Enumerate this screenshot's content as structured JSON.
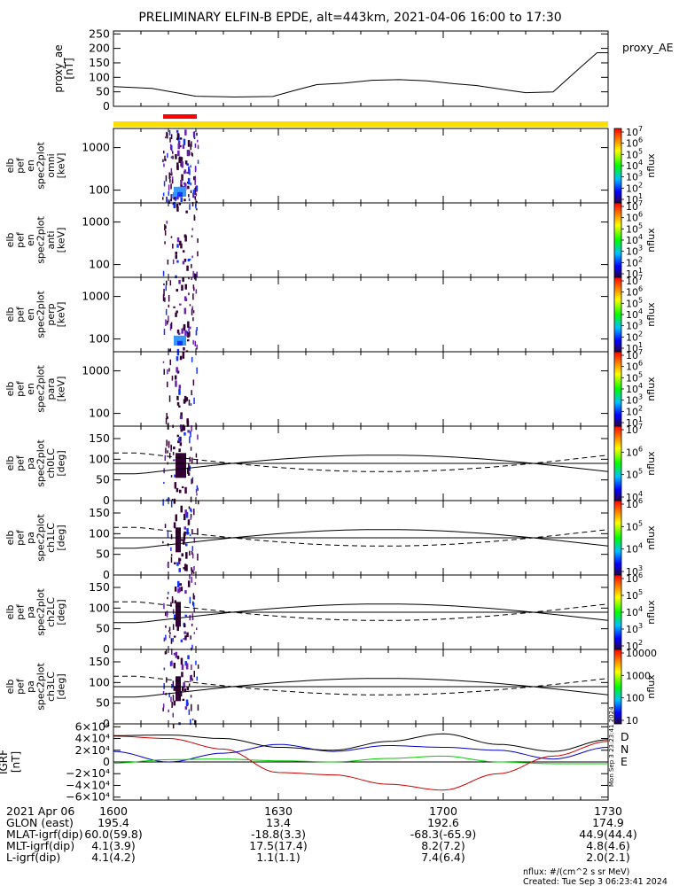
{
  "title": "PRELIMINARY ELFIN-B EPDE, alt=443km, 2021-04-06 16:00 to 17:30",
  "footer": {
    "units": "nflux: #/(cm^2 s sr MeV)",
    "created": "Created: Tue Sep  3 06:23:41 2024"
  },
  "side_stamp": "Mon Sep  3 23:23:41 2024",
  "colors": {
    "sc_bar": "#ffdd00",
    "sci_zone": "#ff0000",
    "grf_d": "#cc0000",
    "grf_n": "#0000cc",
    "grf_e": "#00cc00",
    "curve": "#000000",
    "spec_low": "#1133ff",
    "spec_mid": "#3399ff",
    "spec_high": "#330033"
  },
  "chart_data": [
    {
      "type": "line",
      "panel": "proxy_ae",
      "ylabel": [
        "proxy_ae",
        "[nT]"
      ],
      "legend": "proxy_AE",
      "ylim": [
        0,
        260
      ],
      "yticks": [
        "250",
        "200",
        "150",
        "100",
        "50",
        "0"
      ],
      "yticks_values": [
        250,
        200,
        150,
        100,
        50,
        0
      ],
      "x_minutes": [
        0,
        7,
        15,
        22,
        29,
        33,
        37,
        42,
        47,
        52,
        57,
        62,
        66,
        72,
        75,
        80,
        85,
        88,
        90
      ],
      "values": [
        68,
        62,
        35,
        32,
        34,
        55,
        75,
        80,
        90,
        92,
        88,
        78,
        72,
        55,
        47,
        50,
        135,
        185,
        185
      ]
    },
    {
      "type": "heatmap",
      "panel": "spec_omni",
      "ylabel": [
        "elb",
        "pef",
        "en",
        "spec2plot",
        "omni",
        "[keV]"
      ],
      "yscale": "log",
      "yticks": [
        "1000",
        "100"
      ],
      "colorbar": {
        "label": "nflux",
        "ticks": [
          "10^7",
          "10^6",
          "10^5",
          "10^4",
          "10^3",
          "10^2",
          "10^1"
        ]
      }
    },
    {
      "type": "heatmap",
      "panel": "spec_anti",
      "ylabel": [
        "elb",
        "pef",
        "en",
        "spec2plot",
        "anti",
        "[keV]"
      ],
      "yscale": "log",
      "yticks": [
        "1000",
        "100"
      ],
      "colorbar": {
        "label": "nflux",
        "ticks": [
          "10^7",
          "10^6",
          "10^5",
          "10^4",
          "10^3",
          "10^2",
          "10^1"
        ]
      }
    },
    {
      "type": "heatmap",
      "panel": "spec_perp",
      "ylabel": [
        "elb",
        "pef",
        "en",
        "spec2plot",
        "perp",
        "[keV]"
      ],
      "yscale": "log",
      "yticks": [
        "1000",
        "100"
      ],
      "colorbar": {
        "label": "nflux",
        "ticks": [
          "10^7",
          "10^6",
          "10^5",
          "10^4",
          "10^3",
          "10^2",
          "10^1"
        ]
      }
    },
    {
      "type": "heatmap",
      "panel": "spec_para",
      "ylabel": [
        "elb",
        "pef",
        "en",
        "spec2plot",
        "para",
        "[keV]"
      ],
      "yscale": "log",
      "yticks": [
        "1000",
        "100"
      ],
      "colorbar": {
        "label": "nflux",
        "ticks": [
          "10^7",
          "10^6",
          "10^5",
          "10^4",
          "10^3",
          "10^2",
          "10^1"
        ]
      }
    },
    {
      "type": "heatmap",
      "panel": "pa_ch0",
      "ylabel": [
        "elb",
        "pef",
        "pa",
        "spec2plot",
        "ch0LC",
        "[deg]"
      ],
      "ylim": [
        0,
        180
      ],
      "yticks": [
        "150",
        "100",
        "50",
        "0"
      ],
      "yticks_values": [
        150,
        100,
        50,
        0
      ],
      "colorbar": {
        "label": "nflux",
        "ticks": [
          "10^7",
          "10^6",
          "10^5",
          "10^4"
        ]
      }
    },
    {
      "type": "heatmap",
      "panel": "pa_ch1",
      "ylabel": [
        "elb",
        "pef",
        "pa",
        "spec2plot",
        "ch1LC",
        "[deg]"
      ],
      "ylim": [
        0,
        180
      ],
      "yticks": [
        "150",
        "100",
        "50",
        "0"
      ],
      "yticks_values": [
        150,
        100,
        50,
        0
      ],
      "colorbar": {
        "label": "nflux",
        "ticks": [
          "10^6",
          "10^5",
          "10^4",
          "10^3"
        ]
      }
    },
    {
      "type": "heatmap",
      "panel": "pa_ch2",
      "ylabel": [
        "elb",
        "pef",
        "pa",
        "spec2plot",
        "ch2LC",
        "[deg]"
      ],
      "ylim": [
        0,
        180
      ],
      "yticks": [
        "150",
        "100",
        "50",
        "0"
      ],
      "yticks_values": [
        150,
        100,
        50,
        0
      ],
      "colorbar": {
        "label": "nflux",
        "ticks": [
          "10^6",
          "10^5",
          "10^4",
          "10^3",
          "10^2"
        ]
      }
    },
    {
      "type": "heatmap",
      "panel": "pa_ch3",
      "ylabel": [
        "elb",
        "pef",
        "pa",
        "spec2plot",
        "ch3LC",
        "[deg]"
      ],
      "ylim": [
        0,
        180
      ],
      "yticks": [
        "150",
        "100",
        "50",
        "0"
      ],
      "yticks_values": [
        150,
        100,
        50,
        0
      ],
      "colorbar": {
        "label": "nflux",
        "ticks": [
          "10000",
          "1000",
          "100",
          "10"
        ]
      }
    },
    {
      "type": "line",
      "panel": "igrf",
      "ylabel": [
        "IGRF",
        "[nT]"
      ],
      "ylim": [
        -65000,
        65000
      ],
      "yticks": [
        "6×10⁴",
        "4×10⁴",
        "2×10⁴",
        "0",
        "−2×10⁴",
        "−4×10⁴",
        "−6×10⁴"
      ],
      "yticks_values": [
        60000,
        40000,
        20000,
        0,
        -20000,
        -40000,
        -60000
      ],
      "legend": [
        "D",
        "N",
        "E"
      ],
      "x_minutes": [
        0,
        10,
        20,
        30,
        40,
        50,
        60,
        70,
        80,
        90
      ],
      "series": [
        {
          "name": "D",
          "values": [
            44000,
            40000,
            22000,
            -18000,
            -22000,
            -38000,
            -48000,
            -20000,
            10000,
            35000
          ]
        },
        {
          "name": "N",
          "values": [
            18000,
            0,
            15000,
            30000,
            18000,
            28000,
            25000,
            20000,
            5000,
            25000
          ]
        },
        {
          "name": "E",
          "values": [
            -2000,
            4000,
            5000,
            2000,
            0,
            6000,
            10000,
            0,
            -3000,
            -3000
          ]
        },
        {
          "name": "F",
          "values": [
            45000,
            46000,
            40000,
            25000,
            20000,
            35000,
            48000,
            30000,
            18000,
            38000
          ]
        }
      ]
    }
  ],
  "x_axis": {
    "date": "2021 Apr 06",
    "ticks": [
      "1600",
      "1630",
      "1700",
      "1730"
    ],
    "rows": [
      {
        "label": "GLON (east)",
        "values": [
          "195.4",
          "13.4",
          "192.6",
          "174.9"
        ]
      },
      {
        "label": "MLAT-igrf(dip)",
        "values": [
          "60.0(59.8)",
          "-18.8(3.3)",
          "-68.3(-65.9)",
          "44.9(44.4)"
        ]
      },
      {
        "label": "MLT-igrf(dip)",
        "values": [
          "4.1(3.9)",
          "17.5(17.4)",
          "8.2(7.2)",
          "4.8(4.6)"
        ]
      },
      {
        "label": "L-igrf(dip)",
        "values": [
          "4.1(4.2)",
          "1.1(1.1)",
          "7.4(6.4)",
          "2.0(2.1)"
        ]
      }
    ]
  }
}
